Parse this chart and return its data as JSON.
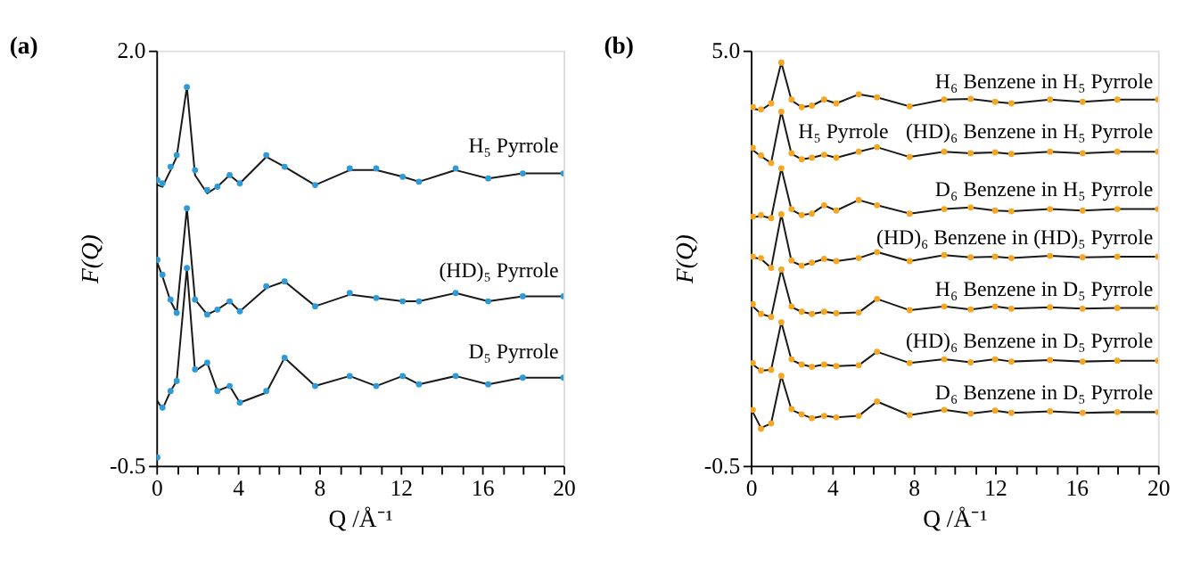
{
  "chart_data": [
    {
      "type": "line",
      "title": "(a)",
      "xlabel": "Q /Å⁻¹",
      "ylabel": "F(Q)",
      "grid": false,
      "x": [
        0.05,
        0.3,
        0.7,
        1.0,
        1.5,
        1.9,
        2.5,
        3.0,
        3.6,
        4.1,
        5.4,
        6.3,
        7.8,
        9.5,
        10.8,
        12.1,
        12.9,
        14.7,
        16.3,
        18,
        20
      ],
      "xlim": [
        0,
        20
      ],
      "xticks": [
        0,
        {
          "value": 1,
          "label": null
        },
        {
          "value": 2,
          "label": null
        },
        {
          "value": 3,
          "label": null
        },
        4,
        {
          "value": 5,
          "label": null
        },
        {
          "value": 6,
          "label": null
        },
        {
          "value": 7,
          "label": null
        },
        8,
        {
          "value": 9,
          "label": null
        },
        {
          "value": 10,
          "label": null
        },
        {
          "value": 11,
          "label": null
        },
        12,
        {
          "value": 13,
          "label": null
        },
        {
          "value": 14,
          "label": null
        },
        {
          "value": 15,
          "label": null
        },
        16,
        {
          "value": 17,
          "label": null
        },
        {
          "value": 18,
          "label": null
        },
        {
          "value": 19,
          "label": null
        },
        20
      ],
      "ylim": [
        -0.5,
        2.0
      ],
      "yticks": [
        -0.5,
        {
          "value": 2.0,
          "label": "2.0"
        }
      ],
      "series": [
        {
          "type": "scatter",
          "marker": "circle",
          "color": "#2f9ad8",
          "values": [
            1.22,
            1.2,
            1.3,
            1.37,
            1.78,
            1.28,
            1.16,
            1.18,
            1.25,
            1.2,
            1.37,
            1.3,
            1.19,
            1.29,
            1.29,
            1.24,
            1.21,
            1.29,
            1.23,
            1.26,
            1.26
          ]
        },
        {
          "color": "#1a1a1a",
          "values": [
            1.19,
            1.18,
            1.28,
            1.36,
            1.78,
            1.25,
            1.14,
            1.18,
            1.25,
            1.2,
            1.36,
            1.3,
            1.19,
            1.28,
            1.28,
            1.24,
            1.21,
            1.28,
            1.23,
            1.26,
            1.26
          ]
        },
        {
          "type": "scatter",
          "marker": "circle",
          "color": "#2f9ad8",
          "values": [
            0.74,
            0.65,
            0.5,
            0.42,
            1.05,
            0.5,
            0.41,
            0.44,
            0.49,
            0.43,
            0.58,
            0.61,
            0.46,
            0.54,
            0.51,
            0.49,
            0.49,
            0.54,
            0.49,
            0.52,
            0.52
          ]
        },
        {
          "color": "#1a1a1a",
          "values": [
            0.72,
            0.64,
            0.49,
            0.42,
            1.05,
            0.5,
            0.41,
            0.44,
            0.49,
            0.43,
            0.57,
            0.61,
            0.46,
            0.53,
            0.51,
            0.49,
            0.49,
            0.54,
            0.49,
            0.52,
            0.52
          ]
        },
        {
          "type": "scatter",
          "marker": "circle",
          "color": "#2f9ad8",
          "values": [
            -0.45,
            -0.15,
            -0.05,
            0.01,
            0.69,
            0.08,
            0.12,
            -0.05,
            -0.02,
            -0.12,
            -0.05,
            0.15,
            -0.02,
            0.04,
            -0.02,
            0.04,
            -0.01,
            0.04,
            -0.01,
            0.03,
            0.03
          ]
        },
        {
          "color": "#1a1a1a",
          "values": [
            -0.11,
            -0.16,
            -0.05,
            0.01,
            0.69,
            0.07,
            0.12,
            -0.05,
            -0.02,
            -0.12,
            -0.06,
            0.15,
            -0.02,
            0.04,
            -0.02,
            0.04,
            -0.01,
            0.04,
            -0.01,
            0.03,
            0.03
          ]
        }
      ],
      "annotations": [
        "H₅ Pyrrole",
        "(HD)₅ Pyrrole",
        "D₅ Pyrrole"
      ]
    },
    {
      "type": "line",
      "title": "(b)",
      "xlabel": "Q /Å⁻¹",
      "ylabel": "F(Q)",
      "grid": false,
      "x": [
        0.1,
        0.5,
        1.0,
        1.5,
        2.0,
        2.5,
        3.0,
        3.6,
        4.2,
        5.3,
        6.2,
        7.8,
        9.5,
        10.8,
        12.0,
        12.8,
        14.7,
        16.3,
        18,
        20
      ],
      "xlim": [
        0,
        20
      ],
      "xticks": [
        0,
        {
          "value": 1,
          "label": null
        },
        {
          "value": 2,
          "label": null
        },
        {
          "value": 3,
          "label": null
        },
        4,
        {
          "value": 5,
          "label": null
        },
        {
          "value": 6,
          "label": null
        },
        {
          "value": 7,
          "label": null
        },
        8,
        {
          "value": 9,
          "label": null
        },
        {
          "value": 10,
          "label": null
        },
        {
          "value": 11,
          "label": null
        },
        12,
        {
          "value": 13,
          "label": null
        },
        {
          "value": 14,
          "label": null
        },
        {
          "value": 15,
          "label": null
        },
        16,
        {
          "value": 17,
          "label": null
        },
        {
          "value": 18,
          "label": null
        },
        {
          "value": 19,
          "label": null
        },
        20
      ],
      "ylim": [
        -0.5,
        5.0
      ],
      "yticks": [
        -0.5,
        {
          "value": 5.0,
          "label": "5.0"
        }
      ],
      "series": [
        {
          "type": "scatter",
          "marker": "circle",
          "color": "#f5a623",
          "values": [
            4.25,
            4.22,
            4.3,
            4.84,
            4.35,
            4.25,
            4.27,
            4.35,
            4.3,
            4.42,
            4.38,
            4.26,
            4.35,
            4.36,
            4.32,
            4.3,
            4.35,
            4.32,
            4.35,
            4.35
          ]
        },
        {
          "color": "#1a1a1a",
          "values": [
            4.23,
            4.21,
            4.3,
            4.84,
            4.34,
            4.25,
            4.27,
            4.35,
            4.3,
            4.42,
            4.38,
            4.26,
            4.35,
            4.36,
            4.32,
            4.3,
            4.35,
            4.32,
            4.35,
            4.35
          ]
        },
        {
          "type": "scatter",
          "marker": "circle",
          "color": "#f5a623",
          "values": [
            3.71,
            3.61,
            3.51,
            4.19,
            3.64,
            3.56,
            3.58,
            3.62,
            3.58,
            3.66,
            3.72,
            3.59,
            3.66,
            3.64,
            3.65,
            3.63,
            3.66,
            3.64,
            3.66,
            3.66
          ]
        },
        {
          "color": "#1a1a1a",
          "values": [
            3.68,
            3.6,
            3.51,
            4.19,
            3.63,
            3.56,
            3.58,
            3.62,
            3.58,
            3.66,
            3.72,
            3.59,
            3.66,
            3.64,
            3.65,
            3.63,
            3.66,
            3.64,
            3.66,
            3.66
          ]
        },
        {
          "type": "scatter",
          "marker": "circle",
          "color": "#f5a623",
          "values": [
            2.8,
            2.82,
            2.78,
            3.44,
            2.9,
            2.82,
            2.84,
            2.95,
            2.88,
            3.02,
            2.95,
            2.84,
            2.9,
            2.92,
            2.88,
            2.87,
            2.9,
            2.88,
            2.9,
            2.9
          ]
        },
        {
          "color": "#1a1a1a",
          "values": [
            2.79,
            2.81,
            2.78,
            3.44,
            2.89,
            2.82,
            2.84,
            2.95,
            2.88,
            3.02,
            2.95,
            2.84,
            2.9,
            2.92,
            2.88,
            2.87,
            2.9,
            2.88,
            2.9,
            2.9
          ]
        },
        {
          "type": "scatter",
          "marker": "circle",
          "color": "#f5a623",
          "values": [
            2.27,
            2.25,
            2.12,
            2.83,
            2.22,
            2.15,
            2.19,
            2.24,
            2.21,
            2.25,
            2.33,
            2.21,
            2.29,
            2.26,
            2.27,
            2.25,
            2.28,
            2.26,
            2.27,
            2.27
          ]
        },
        {
          "color": "#1a1a1a",
          "values": [
            2.26,
            2.24,
            2.12,
            2.83,
            2.21,
            2.15,
            2.19,
            2.24,
            2.21,
            2.25,
            2.33,
            2.21,
            2.29,
            2.26,
            2.27,
            2.25,
            2.28,
            2.26,
            2.27,
            2.27
          ]
        },
        {
          "type": "scatter",
          "marker": "circle",
          "color": "#f5a623",
          "values": [
            1.64,
            1.51,
            1.47,
            2.1,
            1.61,
            1.54,
            1.51,
            1.54,
            1.52,
            1.53,
            1.71,
            1.56,
            1.61,
            1.57,
            1.61,
            1.58,
            1.6,
            1.58,
            1.59,
            1.59
          ]
        },
        {
          "color": "#1a1a1a",
          "values": [
            1.61,
            1.51,
            1.47,
            2.1,
            1.6,
            1.54,
            1.51,
            1.54,
            1.52,
            1.53,
            1.71,
            1.56,
            1.61,
            1.57,
            1.61,
            1.58,
            1.6,
            1.58,
            1.59,
            1.59
          ]
        },
        {
          "type": "scatter",
          "marker": "circle",
          "color": "#f5a623",
          "values": [
            0.86,
            0.76,
            0.77,
            1.4,
            0.91,
            0.84,
            0.81,
            0.84,
            0.82,
            0.83,
            1.01,
            0.86,
            0.91,
            0.87,
            0.91,
            0.88,
            0.9,
            0.88,
            0.89,
            0.89
          ]
        },
        {
          "color": "#1a1a1a",
          "values": [
            0.84,
            0.76,
            0.77,
            1.4,
            0.9,
            0.84,
            0.81,
            0.84,
            0.82,
            0.83,
            1.01,
            0.86,
            0.91,
            0.87,
            0.91,
            0.88,
            0.9,
            0.88,
            0.89,
            0.89
          ]
        },
        {
          "type": "scatter",
          "marker": "circle",
          "color": "#f5a623",
          "values": [
            0.24,
            -0.01,
            0.06,
            0.69,
            0.25,
            0.18,
            0.13,
            0.16,
            0.14,
            0.16,
            0.35,
            0.17,
            0.24,
            0.19,
            0.23,
            0.2,
            0.22,
            0.2,
            0.21,
            0.21
          ]
        },
        {
          "color": "#1a1a1a",
          "values": [
            0.21,
            0.0,
            0.06,
            0.69,
            0.24,
            0.18,
            0.13,
            0.16,
            0.14,
            0.16,
            0.35,
            0.17,
            0.24,
            0.19,
            0.23,
            0.2,
            0.22,
            0.2,
            0.21,
            0.21
          ]
        }
      ],
      "annotations": [
        "H₆ Benzene in H₅ Pyrrole",
        "H₅ Pyrrole",
        "(HD)₆ Benzene in H₅ Pyrrole",
        "D₆ Benzene in H₅ Pyrrole",
        "(HD)₆ Benzene in (HD)₅ Pyrrole",
        "H₆ Benzene in D₅ Pyrrole",
        "(HD)₆ Benzene in D₅ Pyrrole",
        "D₆ Benzene in D₅ Pyrrole"
      ]
    }
  ]
}
